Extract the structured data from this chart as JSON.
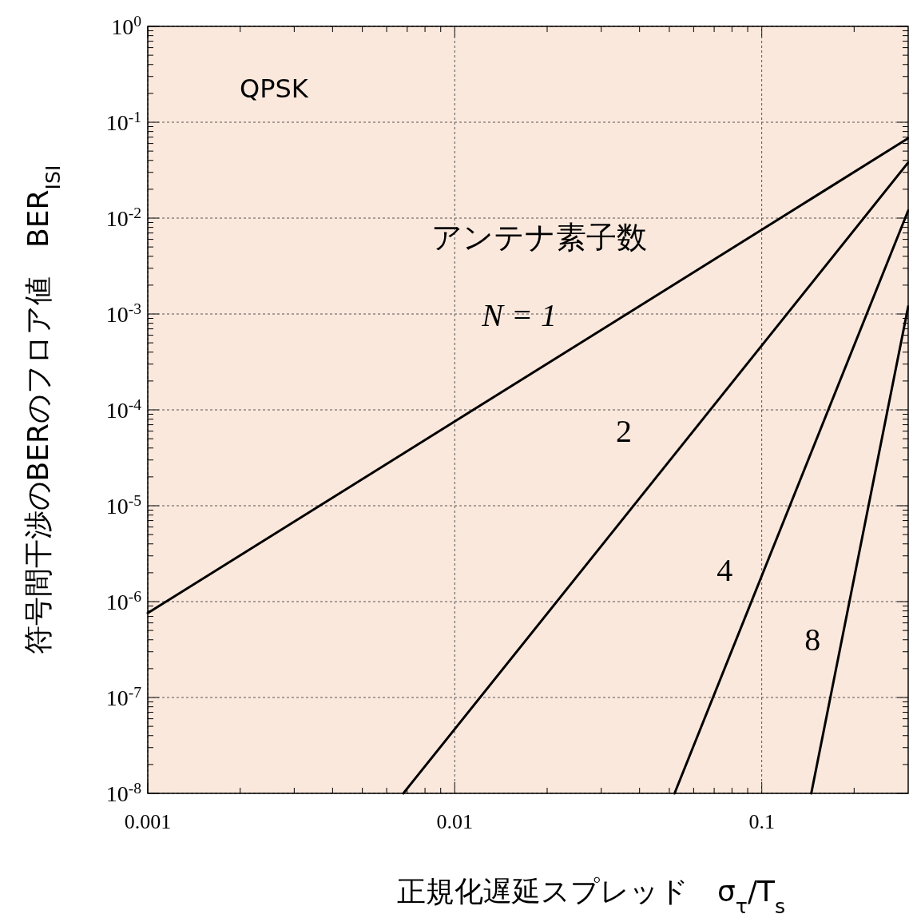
{
  "chart_data": {
    "type": "line",
    "xlabel": "正規化遅延スプレッド　σ$_{τ}$/T$_{s}$",
    "ylabel": "符号間干渉のBERのフロア値　BER$_{ISI}$",
    "log": "xy",
    "grid": true,
    "line_style": "solid",
    "xlim": [
      0.001,
      0.3
    ],
    "ylim": [
      1e-08,
      1
    ],
    "xticks": [
      0.001,
      0.01,
      0.1
    ],
    "yticks": [
      {
        "value": 1e-08,
        "label": "10$^{-8}$"
      },
      {
        "value": 1e-07,
        "label": "10$^{-7}$"
      },
      {
        "value": 1e-06,
        "label": "10$^{-6}$"
      },
      {
        "value": 1e-05,
        "label": "10$^{-5}$"
      },
      {
        "value": 0.0001,
        "label": "10$^{-4}$"
      },
      {
        "value": 0.001,
        "label": "10$^{-3}$"
      },
      {
        "value": 0.01,
        "label": "10$^{-2}$"
      },
      {
        "value": 0.1,
        "label": "10$^{-1}$"
      },
      {
        "value": 1,
        "label": "10$^{0}$"
      }
    ],
    "annotations": [
      "QPSK",
      "アンテナ素子数"
    ],
    "series": [
      {
        "name": "N = 1",
        "color": "#000000",
        "x": [
          0.001,
          0.3
        ],
        "values": [
          7.6e-07,
          0.068
        ]
      },
      {
        "name": "2",
        "color": "#000000",
        "x": [
          0.0068,
          0.3
        ],
        "values": [
          1e-08,
          0.038
        ]
      },
      {
        "name": "4",
        "color": "#000000",
        "x": [
          0.052,
          0.3
        ],
        "values": [
          1e-08,
          0.012
        ]
      },
      {
        "name": "8",
        "color": "#000000",
        "x": [
          0.145,
          0.3
        ],
        "values": [
          1e-08,
          0.0012
        ]
      }
    ]
  }
}
